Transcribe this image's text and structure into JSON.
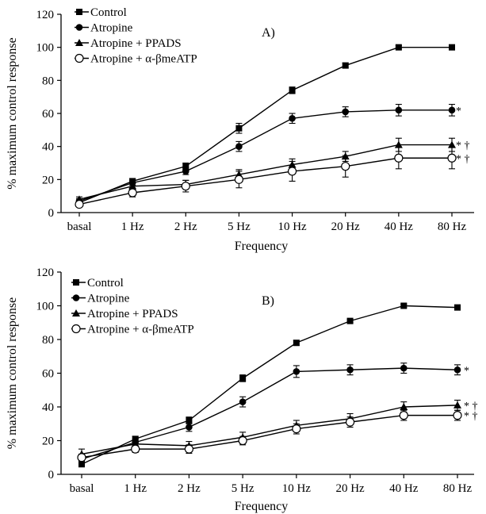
{
  "chart_data": [
    {
      "type": "line",
      "panel_label": "A)",
      "categories": [
        "basal",
        "1 Hz",
        "2 Hz",
        "5 Hz",
        "10 Hz",
        "20 Hz",
        "40 Hz",
        "80 Hz"
      ],
      "xlabel": "Frequency",
      "ylabel": "% maximum control response",
      "ylim": [
        0,
        120
      ],
      "yticks": [
        0,
        20,
        40,
        60,
        80,
        100,
        120
      ],
      "grid": false,
      "legend_position": "top-left",
      "series": [
        {
          "name": "Control",
          "marker": "square",
          "values": [
            6,
            19,
            28,
            51,
            74,
            89,
            100,
            100
          ],
          "errors": [
            1.5,
            1.5,
            2,
            3,
            2,
            1.5,
            1,
            1
          ],
          "significance": ""
        },
        {
          "name": "Atropine",
          "marker": "circle",
          "values": [
            7,
            18,
            25,
            40,
            57,
            61,
            62,
            62
          ],
          "errors": [
            1.5,
            1.5,
            2,
            3,
            3,
            3,
            3.5,
            3.5
          ],
          "significance": "*"
        },
        {
          "name": "Atropine + PPADS",
          "marker": "triangle",
          "values": [
            8,
            16,
            17,
            23,
            29,
            34,
            41,
            41
          ],
          "errors": [
            1.5,
            2,
            2.5,
            3,
            3.5,
            3,
            4,
            4
          ],
          "significance": "* †"
        },
        {
          "name": "Atropine + α-βmeATP",
          "marker": "open-circle",
          "values": [
            5,
            12,
            16,
            20,
            25,
            28,
            33,
            33
          ],
          "errors": [
            1.5,
            2.5,
            3.5,
            5,
            6,
            6.5,
            6.5,
            6.5
          ],
          "significance": "* †"
        }
      ]
    },
    {
      "type": "line",
      "panel_label": "B)",
      "categories": [
        "basal",
        "1 Hz",
        "2 Hz",
        "5 Hz",
        "10 Hz",
        "20 Hz",
        "40 Hz",
        "80 Hz"
      ],
      "xlabel": "Frequency",
      "ylabel": "% maximum control response",
      "ylim": [
        0,
        120
      ],
      "yticks": [
        0,
        20,
        40,
        60,
        80,
        100,
        120
      ],
      "grid": false,
      "legend_position": "top-left",
      "series": [
        {
          "name": "Control",
          "marker": "square",
          "values": [
            6,
            21,
            32,
            57,
            78,
            91,
            100,
            99
          ],
          "errors": [
            1,
            1.5,
            2,
            2,
            1.5,
            1,
            1,
            1
          ],
          "significance": ""
        },
        {
          "name": "Atropine",
          "marker": "circle",
          "values": [
            9,
            19,
            28,
            43,
            61,
            62,
            63,
            62
          ],
          "errors": [
            2,
            2,
            2.5,
            3,
            3.5,
            3,
            3,
            3
          ],
          "significance": "*"
        },
        {
          "name": "Atropine + PPADS",
          "marker": "triangle",
          "values": [
            12,
            18,
            17,
            22,
            29,
            33,
            40,
            41
          ],
          "errors": [
            3,
            2,
            2.5,
            3,
            3,
            3,
            3,
            3
          ],
          "significance": "* †"
        },
        {
          "name": "Atropine + α-βmeATP",
          "marker": "open-circle",
          "values": [
            10,
            15,
            15,
            20,
            27,
            31,
            35,
            35
          ],
          "errors": [
            2,
            2,
            2.5,
            2.5,
            3,
            3,
            3,
            3
          ],
          "significance": "* †"
        }
      ]
    }
  ]
}
